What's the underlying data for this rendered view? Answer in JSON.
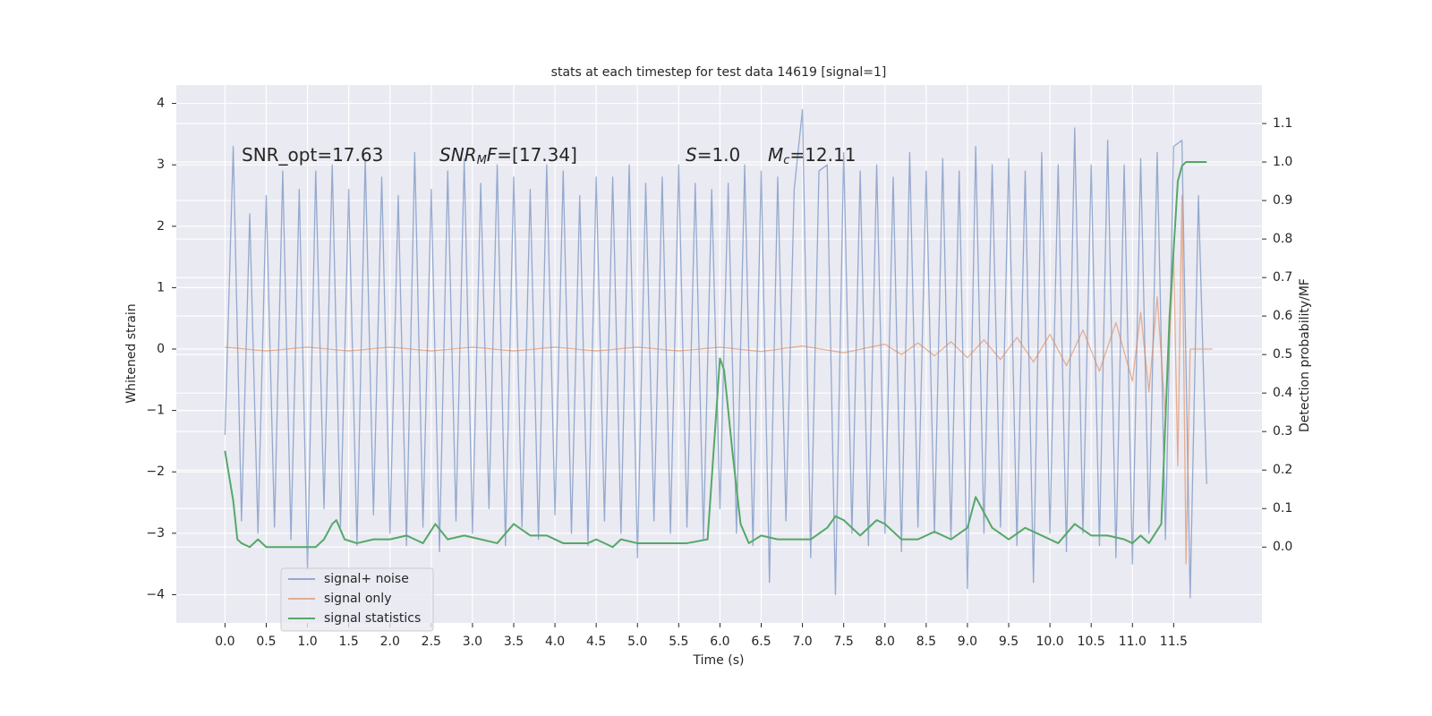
{
  "chart_data": {
    "type": "line",
    "title": "stats at each timestep for test data 14619 [signal=1]",
    "xlabel": "Time (s)",
    "ylabel": "Whitened strain",
    "y2label": "Detection probability/MF",
    "annotations": [
      [
        "SNR_opt=17.63"
      ],
      [
        "SNR",
        "M",
        "F",
        "=[17.34]"
      ],
      [
        "S",
        "=1.0"
      ],
      [
        "M",
        "c",
        "=12.11"
      ]
    ],
    "xlim": [
      -0.59,
      12.57
    ],
    "ylim": [
      -4.46,
      4.3
    ],
    "y2lim": [
      -0.197,
      1.2
    ],
    "grid": true,
    "legend": "lower left",
    "xticks": [
      {
        "value": 0,
        "label": "0.0"
      },
      0.5,
      {
        "value": 1,
        "label": "1.0"
      },
      1.5,
      {
        "value": 2,
        "label": "2.0"
      },
      2.5,
      {
        "value": 3,
        "label": "3.0"
      },
      3.5,
      {
        "value": 4,
        "label": "4.0"
      },
      4.5,
      {
        "value": 5,
        "label": "5.0"
      },
      5.5,
      {
        "value": 6,
        "label": "6.0"
      },
      6.5,
      {
        "value": 7,
        "label": "7.0"
      },
      7.5,
      {
        "value": 8,
        "label": "8.0"
      },
      8.5,
      {
        "value": 9,
        "label": "9.0"
      },
      9.5,
      {
        "value": 10,
        "label": "10.0"
      },
      10.5,
      {
        "value": 11,
        "label": "11.0"
      },
      11.5
    ],
    "yticks": [
      {
        "value": -4,
        "label": "−4"
      },
      {
        "value": -3,
        "label": "−3"
      },
      {
        "value": -2,
        "label": "−2"
      },
      {
        "value": -1,
        "label": "−1"
      },
      0,
      1,
      2,
      3,
      4
    ],
    "y2ticks": [
      {
        "value": 0,
        "label": "0.0"
      },
      0.1,
      0.2,
      0.3,
      0.4,
      0.5,
      0.6,
      0.7,
      0.8,
      0.9,
      {
        "value": 1,
        "label": "1.0"
      },
      1.1
    ],
    "series": [
      {
        "name": "signal+ noise",
        "color": "#4c72b0",
        "opacity": 0.55,
        "x": [
          0,
          0.1,
          0.2,
          0.3,
          0.4,
          0.5,
          0.6,
          0.7,
          0.8,
          0.9,
          1,
          1.1,
          1.2,
          1.3,
          1.4,
          1.5,
          1.6,
          1.7,
          1.8,
          1.9,
          2,
          2.1,
          2.2,
          2.3,
          2.4,
          2.5,
          2.6,
          2.7,
          2.8,
          2.9,
          3,
          3.1,
          3.2,
          3.3,
          3.4,
          3.5,
          3.6,
          3.7,
          3.8,
          3.9,
          4,
          4.1,
          4.2,
          4.3,
          4.4,
          4.5,
          4.6,
          4.7,
          4.8,
          4.9,
          5,
          5.1,
          5.2,
          5.3,
          5.4,
          5.5,
          5.6,
          5.7,
          5.8,
          5.9,
          6,
          6.1,
          6.2,
          6.3,
          6.4,
          6.5,
          6.6,
          6.7,
          6.8,
          6.9,
          7,
          7.1,
          7.2,
          7.3,
          7.4,
          7.5,
          7.6,
          7.7,
          7.8,
          7.9,
          8,
          8.1,
          8.2,
          8.3,
          8.4,
          8.5,
          8.6,
          8.7,
          8.8,
          8.9,
          9,
          9.1,
          9.2,
          9.3,
          9.4,
          9.5,
          9.6,
          9.7,
          9.8,
          9.9,
          10,
          10.1,
          10.2,
          10.3,
          10.4,
          10.5,
          10.6,
          10.7,
          10.8,
          10.9,
          11,
          11.1,
          11.2,
          11.3,
          11.4,
          11.5,
          11.6,
          11.7,
          11.8,
          11.9
        ],
        "values": [
          -1.4,
          3.3,
          -2.8,
          2.2,
          -3.0,
          2.5,
          -2.9,
          2.9,
          -3.1,
          2.6,
          -3.6,
          2.9,
          -2.6,
          3.0,
          -2.9,
          2.6,
          -3.2,
          3.1,
          -2.7,
          2.8,
          -3.0,
          2.5,
          -3.2,
          3.2,
          -2.9,
          2.6,
          -3.3,
          2.9,
          -2.8,
          3.1,
          -3.0,
          2.7,
          -2.6,
          3.0,
          -3.2,
          2.8,
          -2.9,
          2.6,
          -3.1,
          3.0,
          -2.7,
          2.9,
          -3.0,
          2.5,
          -3.2,
          2.8,
          -2.8,
          2.8,
          -3.0,
          3.0,
          -3.4,
          2.7,
          -2.8,
          2.8,
          -3.0,
          3.0,
          -2.9,
          2.7,
          -3.1,
          2.6,
          -2.6,
          2.7,
          -3.0,
          3.0,
          -3.2,
          2.9,
          -3.8,
          2.8,
          -2.8,
          2.6,
          3.9,
          -3.4,
          2.9,
          3.0,
          -4.0,
          3.2,
          -3.0,
          2.9,
          -3.2,
          3.0,
          -3.0,
          2.8,
          -3.3,
          3.2,
          -2.9,
          2.9,
          -3.0,
          3.1,
          -3.1,
          2.9,
          -3.9,
          3.3,
          -3.0,
          3.0,
          -2.9,
          3.1,
          -3.2,
          2.9,
          -3.8,
          3.2,
          -3.0,
          3.0,
          -3.3,
          3.6,
          -3.0,
          3.0,
          -3.2,
          3.4,
          -3.4,
          3.0,
          -3.5,
          3.1,
          -3.0,
          3.2,
          -3.1,
          3.3,
          3.4,
          -4.05,
          2.5,
          -2.2
        ]
      },
      {
        "name": "signal only",
        "color": "#dd8452",
        "opacity": 0.6,
        "x": [
          0,
          0.5,
          1,
          1.5,
          2,
          2.5,
          3,
          3.5,
          4,
          4.5,
          5,
          5.5,
          6,
          6.5,
          7,
          7.5,
          8,
          8.2,
          8.4,
          8.6,
          8.8,
          9,
          9.2,
          9.4,
          9.6,
          9.8,
          10,
          10.2,
          10.4,
          10.6,
          10.8,
          11,
          11.1,
          11.2,
          11.3,
          11.4,
          11.5,
          11.55,
          11.6,
          11.65,
          11.7,
          11.8,
          11.97
        ],
        "values": [
          0.03,
          -0.03,
          0.03,
          -0.03,
          0.03,
          -0.03,
          0.03,
          -0.03,
          0.03,
          -0.03,
          0.03,
          -0.03,
          0.03,
          -0.04,
          0.05,
          -0.06,
          0.08,
          -0.09,
          0.1,
          -0.11,
          0.12,
          -0.14,
          0.15,
          -0.17,
          0.19,
          -0.21,
          0.24,
          -0.27,
          0.31,
          -0.36,
          0.43,
          -0.52,
          0.6,
          -0.7,
          0.85,
          -1.1,
          1.5,
          -1.9,
          2.5,
          -3.5,
          0,
          0,
          0
        ]
      },
      {
        "name": "signal statistics",
        "color": "#55a868",
        "opacity": 1,
        "axis": "y2",
        "x": [
          0,
          0.1,
          0.15,
          0.2,
          0.3,
          0.4,
          0.5,
          0.6,
          0.7,
          0.8,
          1,
          1.1,
          1.2,
          1.3,
          1.35,
          1.45,
          1.6,
          1.8,
          2,
          2.2,
          2.3,
          2.4,
          2.55,
          2.7,
          2.9,
          3.1,
          3.3,
          3.5,
          3.7,
          3.9,
          4.1,
          4.4,
          4.5,
          4.7,
          4.8,
          5,
          5.3,
          5.6,
          5.85,
          6,
          6.05,
          6.15,
          6.25,
          6.35,
          6.5,
          6.7,
          6.9,
          7.1,
          7.3,
          7.4,
          7.5,
          7.7,
          7.9,
          8,
          8.2,
          8.4,
          8.6,
          8.8,
          9,
          9.1,
          9.3,
          9.5,
          9.7,
          9.9,
          10.1,
          10.3,
          10.5,
          10.7,
          10.9,
          11,
          11.1,
          11.2,
          11.35,
          11.45,
          11.55,
          11.6,
          11.65,
          11.75,
          11.9
        ],
        "values": [
          0.25,
          0.12,
          0.02,
          0.01,
          0.0,
          0.02,
          0.0,
          0.0,
          0.0,
          0.0,
          0.0,
          0.0,
          0.02,
          0.06,
          0.07,
          0.02,
          0.01,
          0.02,
          0.02,
          0.03,
          0.02,
          0.01,
          0.06,
          0.02,
          0.03,
          0.02,
          0.01,
          0.06,
          0.03,
          0.03,
          0.01,
          0.01,
          0.02,
          0.0,
          0.02,
          0.01,
          0.01,
          0.01,
          0.02,
          0.49,
          0.46,
          0.25,
          0.06,
          0.01,
          0.03,
          0.02,
          0.02,
          0.02,
          0.05,
          0.08,
          0.07,
          0.03,
          0.07,
          0.06,
          0.02,
          0.02,
          0.04,
          0.02,
          0.05,
          0.13,
          0.05,
          0.02,
          0.05,
          0.03,
          0.01,
          0.06,
          0.03,
          0.03,
          0.02,
          0.01,
          0.03,
          0.01,
          0.06,
          0.6,
          0.95,
          0.99,
          1.0,
          1.0,
          1.0
        ]
      }
    ]
  }
}
